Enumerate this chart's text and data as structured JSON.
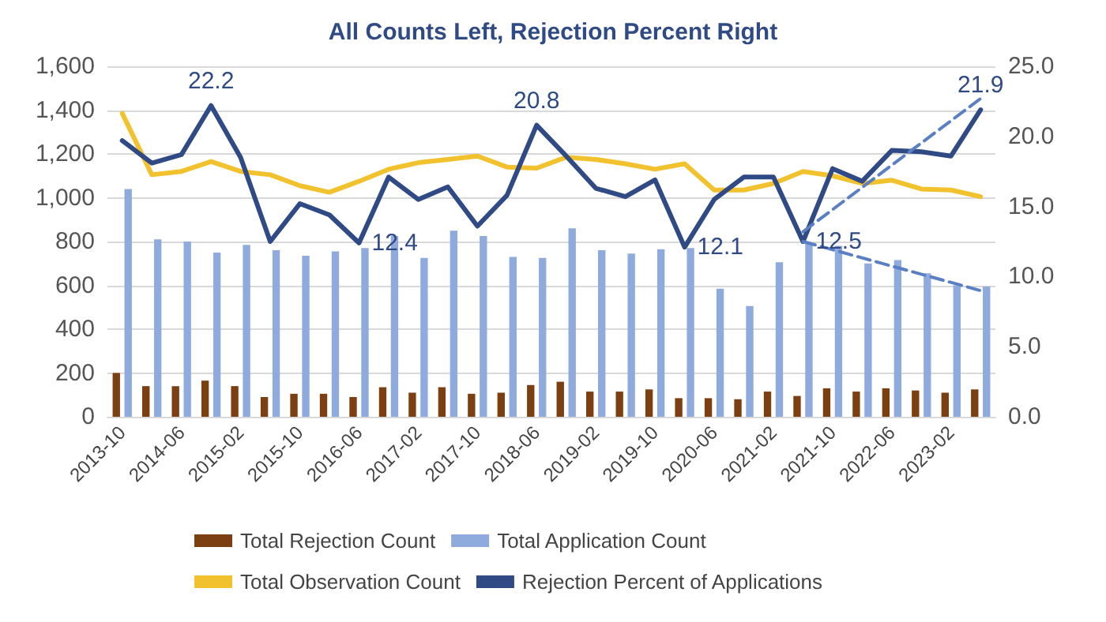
{
  "chart_data": {
    "type": "bar",
    "title": "All Counts Left, Rejection Percent Right",
    "categories": [
      "2013-10",
      null,
      "2014-06",
      null,
      "2015-02",
      null,
      "2015-10",
      null,
      "2016-06",
      null,
      "2017-02",
      null,
      "2017-10",
      null,
      "2018-06",
      null,
      "2019-02",
      null,
      "2019-10",
      null,
      "2020-06",
      null,
      "2021-02",
      null,
      "2021-10",
      null,
      "2022-06",
      null,
      "2023-02",
      null
    ],
    "series": [
      {
        "name": "Total Rejection Count",
        "color": "#7b3f12",
        "values": [
          200,
          140,
          140,
          165,
          140,
          90,
          105,
          105,
          90,
          135,
          110,
          135,
          105,
          110,
          145,
          160,
          115,
          115,
          125,
          85,
          85,
          80,
          115,
          95,
          130,
          115,
          130,
          120,
          110,
          125
        ]
      },
      {
        "name": "Total Application Count",
        "color": "#8faadc",
        "values": [
          1040,
          810,
          800,
          750,
          785,
          760,
          735,
          755,
          770,
          825,
          725,
          850,
          825,
          730,
          725,
          860,
          760,
          745,
          765,
          770,
          585,
          505,
          705,
          790,
          780,
          700,
          715,
          655,
          600,
          595
        ]
      },
      {
        "name": "Total Observation Count",
        "type": "line",
        "color": "#f2c12e",
        "values": [
          1385,
          1105,
          1120,
          1165,
          1120,
          1105,
          1055,
          1025,
          1075,
          1130,
          1160,
          1175,
          1190,
          1140,
          1135,
          1185,
          1175,
          1155,
          1130,
          1155,
          1035,
          1035,
          1065,
          1120,
          1100,
          1065,
          1080,
          1040,
          1035,
          1005
        ]
      },
      {
        "name": "Rejection Percent of Applications",
        "type": "line",
        "axis": "y2",
        "color": "#2f4a84",
        "values": [
          19.7,
          18.1,
          18.7,
          22.2,
          18.5,
          12.5,
          15.2,
          14.4,
          12.4,
          17.1,
          15.5,
          16.4,
          13.6,
          15.8,
          20.8,
          18.6,
          16.3,
          15.7,
          16.9,
          12.1,
          15.5,
          17.1,
          17.1,
          12.5,
          17.7,
          16.8,
          19.0,
          18.9,
          18.6,
          21.9
        ],
        "value_labels": [
          null,
          null,
          null,
          "22.2",
          null,
          null,
          null,
          null,
          "12.4",
          null,
          null,
          null,
          null,
          null,
          "20.8",
          null,
          null,
          null,
          null,
          "12.1",
          null,
          null,
          null,
          "12.5",
          null,
          null,
          null,
          null,
          null,
          "21.9"
        ]
      },
      {
        "type": "line",
        "axis": "y2",
        "line_style": "dashed",
        "color": "#5b7fc4",
        "values": [
          null,
          null,
          null,
          null,
          null,
          null,
          null,
          null,
          null,
          null,
          null,
          null,
          null,
          null,
          null,
          null,
          null,
          null,
          null,
          null,
          null,
          null,
          null,
          13.2,
          null,
          null,
          null,
          null,
          null,
          22.7
        ]
      },
      {
        "type": "line",
        "axis": "y2",
        "line_style": "dashed",
        "color": "#5b7fc4",
        "values": [
          null,
          null,
          null,
          null,
          null,
          null,
          null,
          null,
          null,
          null,
          null,
          null,
          null,
          null,
          null,
          null,
          null,
          null,
          null,
          null,
          null,
          null,
          null,
          12.5,
          null,
          null,
          null,
          null,
          null,
          9.0
        ]
      }
    ],
    "ylim": [
      0,
      1600
    ],
    "yticks": [
      0,
      200,
      400,
      600,
      800,
      {
        "value": 1000,
        "label": "1,000"
      },
      {
        "value": 1200,
        "label": "1,200"
      },
      {
        "value": 1400,
        "label": "1,400"
      },
      {
        "value": 1600,
        "label": "1,600"
      }
    ],
    "y2lim": [
      0,
      25
    ],
    "y2ticks": [
      {
        "value": 0,
        "label": "0.0"
      },
      {
        "value": 5,
        "label": "5.0"
      },
      {
        "value": 10,
        "label": "10.0"
      },
      {
        "value": 15,
        "label": "15.0"
      },
      {
        "value": 20,
        "label": "20.0"
      },
      {
        "value": 25,
        "label": "25.0"
      }
    ],
    "grid": "y",
    "legend": "bottom",
    "marker": "none",
    "line_style": "solid"
  }
}
